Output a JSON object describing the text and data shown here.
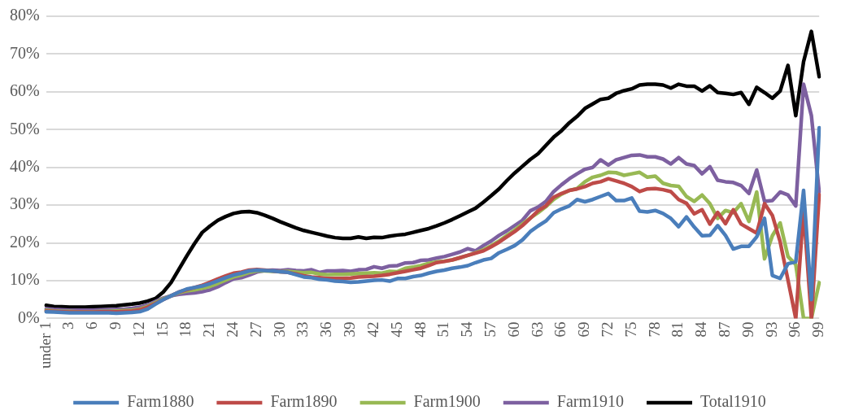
{
  "chart_data": {
    "type": "line",
    "categories": [
      "under 1",
      null,
      null,
      "3",
      null,
      null,
      "6",
      null,
      null,
      "9",
      null,
      null,
      "12",
      null,
      null,
      "15",
      null,
      null,
      "18",
      null,
      null,
      "21",
      null,
      null,
      "24",
      null,
      null,
      "27",
      null,
      null,
      "30",
      null,
      null,
      "33",
      null,
      null,
      "36",
      null,
      null,
      "39",
      null,
      null,
      "42",
      null,
      null,
      "45",
      null,
      null,
      "48",
      null,
      null,
      "51",
      null,
      null,
      "54",
      null,
      null,
      "57",
      null,
      null,
      "60",
      null,
      null,
      "63",
      null,
      null,
      "66",
      null,
      null,
      "69",
      null,
      null,
      "72",
      null,
      null,
      "75",
      null,
      null,
      "78",
      null,
      null,
      "81",
      null,
      null,
      "84",
      null,
      null,
      "87",
      null,
      null,
      "90",
      null,
      null,
      "93",
      null,
      null,
      "96",
      null,
      null,
      "99"
    ],
    "series": [
      {
        "name": "Farm1880",
        "color": "#4a7ebb",
        "values": [
          1.8,
          1.7,
          1.6,
          1.5,
          1.5,
          1.5,
          1.5,
          1.5,
          1.5,
          1.4,
          1.5,
          1.6,
          1.8,
          2.5,
          3.8,
          5,
          6,
          7,
          7.8,
          8.2,
          8.6,
          9.2,
          10,
          10.8,
          11.5,
          12,
          12.6,
          12.8,
          12.7,
          12.6,
          12.4,
          12.2,
          11.6,
          11,
          10.8,
          10.4,
          10.2,
          9.9,
          9.8,
          9.6,
          9.7,
          9.9,
          10.1,
          10.2,
          9.9,
          10.6,
          10.6,
          11.1,
          11.4,
          12,
          12.5,
          12.8,
          13.3,
          13.6,
          14,
          14.8,
          15.5,
          15.9,
          17.4,
          18.3,
          19.3,
          20.8,
          23,
          24.5,
          25.8,
          28,
          29,
          29.8,
          31.5,
          30.9,
          31.5,
          32.3,
          33.1,
          31.2,
          31.2,
          31.9,
          28.4,
          28.2,
          28.6,
          27.8,
          26.5,
          24.3,
          26.9,
          24.2,
          21.9,
          22,
          24.6,
          22,
          18.4,
          19.1,
          19.1,
          21.6,
          26.5,
          11.4,
          10.6,
          14.5,
          15,
          33.9,
          5,
          50.5
        ]
      },
      {
        "name": "Farm1890",
        "color": "#be4b48",
        "values": [
          2,
          1.9,
          1.8,
          1.7,
          1.7,
          1.7,
          1.7,
          1.8,
          1.8,
          1.8,
          1.9,
          2,
          2.3,
          3,
          4,
          5,
          6,
          7,
          7.6,
          8.2,
          8.8,
          9.6,
          10.5,
          11.3,
          12,
          12.3,
          12.8,
          13,
          12.8,
          12.6,
          12.4,
          12.2,
          11.8,
          11.3,
          11,
          10.8,
          10.6,
          10.6,
          10.6,
          10.7,
          11,
          11.1,
          11.2,
          11.4,
          11.7,
          12.1,
          12.5,
          12.9,
          13.3,
          14,
          14.8,
          15.1,
          15.5,
          16.1,
          16.7,
          17.3,
          17.9,
          19,
          20.2,
          21.6,
          23,
          24.6,
          26.5,
          28.5,
          29.8,
          32.1,
          33.1,
          33.9,
          34.3,
          34.9,
          35.8,
          36.2,
          37,
          36.4,
          35.8,
          34.9,
          33.6,
          34.3,
          34.4,
          34.1,
          33.6,
          31.5,
          30.5,
          27.7,
          28.8,
          25,
          28.1,
          25.1,
          28.8,
          25,
          23.8,
          22.6,
          30.4,
          27.3,
          20.3,
          10.2,
          0,
          28.8,
          0,
          32.8
        ]
      },
      {
        "name": "Farm1900",
        "color": "#98b954",
        "values": [
          2.2,
          2,
          1.9,
          1.9,
          1.8,
          1.8,
          1.8,
          1.9,
          1.9,
          2,
          2.1,
          2.2,
          2.5,
          3.2,
          4.2,
          5.2,
          6,
          6.8,
          7.3,
          7.6,
          8,
          8.5,
          9.3,
          10.2,
          11,
          11.5,
          12.2,
          12.6,
          12.6,
          12.5,
          12.4,
          12.5,
          12.3,
          12.1,
          12.2,
          11.8,
          11.6,
          11.7,
          11.7,
          11.8,
          11.9,
          12,
          12.1,
          12,
          12.5,
          12.4,
          13.3,
          13.6,
          14,
          14.6,
          15,
          15.2,
          15.5,
          16.1,
          16.7,
          17.4,
          18.2,
          19.3,
          20.5,
          22,
          23.4,
          25,
          26.6,
          28,
          29.6,
          31.5,
          32.9,
          33.9,
          34.4,
          36.2,
          37.4,
          37.9,
          38.7,
          38.6,
          37.9,
          38.3,
          38.7,
          37.4,
          37.7,
          35.8,
          35.2,
          35,
          32.3,
          31,
          32.7,
          30.4,
          26.5,
          28.6,
          28,
          30.4,
          25.7,
          33.5,
          15.8,
          21.9,
          25.3,
          16.4,
          14.3,
          0,
          0,
          9.5
        ]
      },
      {
        "name": "Farm1910",
        "color": "#7d60a0",
        "values": [
          2.6,
          2.4,
          2.3,
          2.2,
          2.2,
          2.2,
          2.2,
          2.3,
          2.3,
          2.4,
          2.5,
          2.7,
          3,
          3.6,
          4.5,
          5.4,
          6,
          6.4,
          6.6,
          6.8,
          7.1,
          7.6,
          8.4,
          9.5,
          10.5,
          10.8,
          11.5,
          12.3,
          12.7,
          12.8,
          12.7,
          12.9,
          12.7,
          12.6,
          12.9,
          12.2,
          12.6,
          12.6,
          12.7,
          12.5,
          12.9,
          13,
          13.7,
          13.3,
          13.9,
          14,
          14.7,
          14.8,
          15.4,
          15.5,
          16,
          16.4,
          17,
          17.6,
          18.5,
          17.9,
          19.3,
          20.5,
          22,
          23.2,
          24.6,
          26,
          28.5,
          29.5,
          31,
          33.6,
          35.4,
          37,
          38.3,
          39.5,
          40,
          42,
          40.6,
          42,
          42.6,
          43.2,
          43.3,
          42.8,
          42.8,
          42.2,
          40.9,
          42.6,
          40.9,
          40.5,
          38.3,
          40.2,
          36.6,
          36.2,
          36,
          35.2,
          33.1,
          39.3,
          31,
          31.2,
          33.5,
          32.7,
          29.8,
          62,
          53.7,
          33.5
        ]
      },
      {
        "name": "Total1910",
        "color": "#000000",
        "values": [
          3.5,
          3.2,
          3.1,
          3,
          3,
          3,
          3.1,
          3.2,
          3.3,
          3.4,
          3.6,
          3.8,
          4.1,
          4.6,
          5.3,
          7,
          9.5,
          13,
          16.5,
          19.8,
          22.8,
          24.5,
          26,
          27,
          27.8,
          28.2,
          28.3,
          28,
          27.3,
          26.5,
          25.6,
          24.8,
          24,
          23.3,
          22.8,
          22.3,
          21.8,
          21.4,
          21.2,
          21.2,
          21.6,
          21.2,
          21.5,
          21.4,
          21.8,
          22.1,
          22.3,
          22.8,
          23.3,
          23.8,
          24.5,
          25.3,
          26.2,
          27.2,
          28.2,
          29.2,
          30.8,
          32.5,
          34.3,
          36.5,
          38.5,
          40.3,
          42.1,
          43.6,
          45.8,
          48,
          49.7,
          51.8,
          53.5,
          55.6,
          56.8,
          58,
          58.3,
          59.6,
          60.3,
          60.8,
          61.8,
          62,
          62,
          61.8,
          61,
          62,
          61.5,
          61.5,
          60.2,
          61.6,
          59.8,
          59.6,
          59.3,
          59.8,
          56.7,
          61.2,
          59.8,
          58.3,
          60.2,
          67,
          53.7,
          68,
          76,
          64
        ]
      }
    ],
    "ylim": [
      0,
      80
    ],
    "yticks": [
      {
        "value": 0,
        "label": "0%"
      },
      {
        "value": 10,
        "label": "10%"
      },
      {
        "value": 20,
        "label": "20%"
      },
      {
        "value": 30,
        "label": "30%"
      },
      {
        "value": 40,
        "label": "40%"
      },
      {
        "value": 50,
        "label": "50%"
      },
      {
        "value": 60,
        "label": "60%"
      },
      {
        "value": 70,
        "label": "70%"
      },
      {
        "value": 80,
        "label": "80%"
      }
    ],
    "grid": "y",
    "legend": "bottom",
    "marker": "none",
    "line_style": "solid"
  }
}
